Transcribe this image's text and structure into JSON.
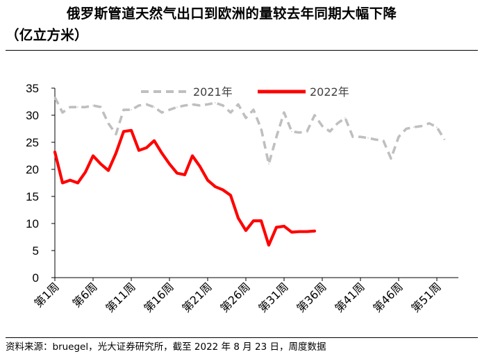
{
  "title_line1": "俄罗斯管道天然气出口到欧洲的量较去年同期大幅下降",
  "title_line2": "（亿立方米）",
  "source": "资料来源：bruegel，光大证券研究所，截至 2022 年 8 月 23 日，周度数据",
  "chart_data": {
    "type": "line",
    "ylim": [
      0,
      35
    ],
    "y_ticks": [
      0,
      5,
      10,
      15,
      20,
      25,
      30,
      35
    ],
    "x_ticks": [
      "第1周",
      "第6周",
      "第11周",
      "第16周",
      "第21周",
      "第26周",
      "第31周",
      "第36周",
      "第41周",
      "第46周",
      "第51周"
    ],
    "x_tick_weeks": [
      1,
      6,
      11,
      16,
      21,
      26,
      31,
      36,
      41,
      46,
      51
    ],
    "x_range": [
      1,
      52
    ],
    "legend_position": "top",
    "grid": false,
    "series": [
      {
        "name": "2021年",
        "color": "#bfbfbf",
        "style": "dashed",
        "weeks": [
          1,
          2,
          3,
          4,
          5,
          6,
          7,
          8,
          9,
          10,
          11,
          12,
          13,
          14,
          15,
          16,
          17,
          18,
          19,
          20,
          21,
          22,
          23,
          24,
          25,
          26,
          27,
          28,
          29,
          30,
          31,
          32,
          33,
          34,
          35,
          36,
          37,
          38,
          39,
          40,
          41,
          42,
          43,
          44,
          45,
          46,
          47,
          48,
          49,
          50,
          51,
          52
        ],
        "values": [
          33.3,
          30.5,
          31.5,
          31.5,
          31.5,
          31.8,
          31.5,
          28.5,
          26.5,
          31,
          31,
          31.8,
          32,
          31.5,
          30.5,
          31,
          31.5,
          31.8,
          32,
          31.8,
          32,
          32.3,
          31.8,
          30.5,
          32,
          29.5,
          31,
          27.5,
          21,
          26,
          30.5,
          27,
          26.8,
          27,
          30,
          28,
          27,
          28.5,
          29.5,
          26,
          26,
          25.8,
          25.5,
          25.3,
          22,
          26,
          27.5,
          27.8,
          28,
          28.5,
          27.8,
          25.5
        ]
      },
      {
        "name": "2022年",
        "color": "#ff0000",
        "style": "solid",
        "weeks": [
          1,
          2,
          3,
          4,
          5,
          6,
          7,
          8,
          9,
          10,
          11,
          12,
          13,
          14,
          15,
          16,
          17,
          18,
          19,
          20,
          21,
          22,
          23,
          24,
          25,
          26,
          27,
          28,
          29,
          30,
          31,
          32,
          33,
          34,
          35
        ],
        "values": [
          23.2,
          17.5,
          18,
          17.5,
          19.5,
          22.5,
          21,
          19.8,
          23,
          27,
          27.2,
          23.5,
          24,
          25.3,
          23,
          21,
          19.3,
          19,
          22.5,
          20.5,
          18,
          16.8,
          16.2,
          15.2,
          11,
          8.7,
          10.5,
          10.5,
          6,
          9.3,
          9.5,
          8.4,
          8.5,
          8.5,
          8.6
        ]
      }
    ]
  }
}
